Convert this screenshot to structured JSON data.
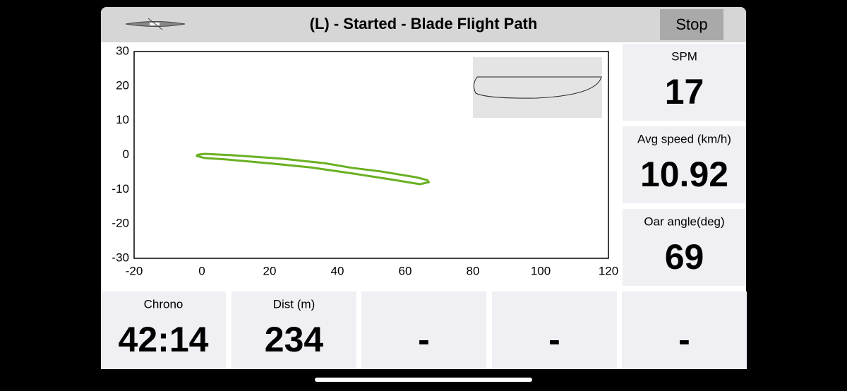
{
  "header": {
    "title": "(L) - Started - Blade Flight Path",
    "button": "Stop"
  },
  "chart_data": {
    "type": "line",
    "x": [
      -1.5,
      0.8,
      9.2,
      23.75,
      36.25,
      44.6,
      52.9,
      63.3,
      66.5,
      67,
      64.4,
      57,
      44.6,
      32,
      19.6,
      7.1,
      0.8,
      -1.5,
      -1.5
    ],
    "values": [
      0,
      0.3,
      -0.1,
      -1.1,
      -2.4,
      -3.8,
      -4.8,
      -6.5,
      -7.3,
      -7.9,
      -8.5,
      -7.3,
      -5.4,
      -3.6,
      -2.4,
      -1.3,
      -0.9,
      -0.3,
      0
    ],
    "color": "#6ab023",
    "xlim": [
      -20,
      120
    ],
    "ylim": [
      -30,
      30
    ],
    "xticks": [
      -20,
      0,
      20,
      40,
      60,
      80,
      100,
      120
    ],
    "yticks": [
      30,
      20,
      10,
      0,
      -10,
      -20,
      -30
    ]
  },
  "side_tiles": [
    {
      "label": "SPM",
      "value": 17
    },
    {
      "label": "Avg speed (km/h)",
      "value": 10.92
    },
    {
      "label": "Oar angle(deg)",
      "value": 69
    }
  ],
  "bottom_tiles": [
    {
      "label": "Chrono",
      "value": "42:14"
    },
    {
      "label": "Dist (m)",
      "value": 234
    },
    {
      "value": "-"
    },
    {
      "value": "-"
    },
    {
      "value": "-"
    }
  ]
}
